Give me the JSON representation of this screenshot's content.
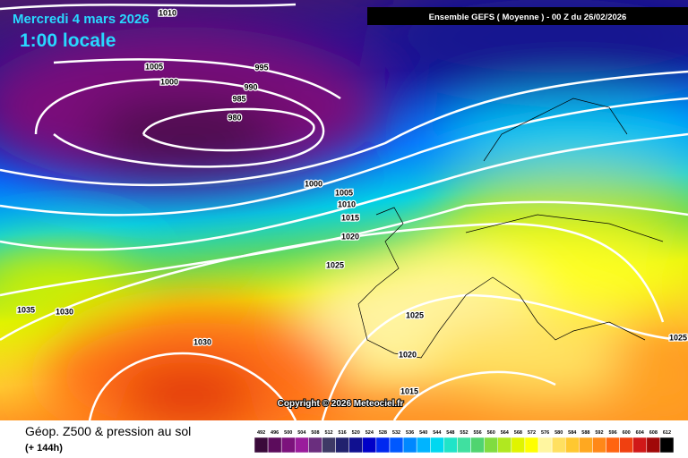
{
  "header": {
    "date": "Mercredi 4 mars 2026",
    "time": "1:00 locale",
    "model": "Ensemble GEFS  ( Moyenne )  -  00 Z du 26/02/2026"
  },
  "isobar_labels": [
    "1010",
    "1005",
    "1000",
    "995",
    "990",
    "985",
    "980",
    "1000",
    "1005",
    "1010",
    "1015",
    "1020",
    "1025",
    "1035",
    "1030",
    "1030",
    "1025",
    "1020",
    "1015",
    "1025"
  ],
  "copyright": "Copyright © 2026 Meteociel.fr",
  "footer": {
    "title": "Géop. Z500 & pression au sol",
    "lead": "(+ 144h)"
  },
  "legend": {
    "labels": [
      "492",
      "496",
      "500",
      "504",
      "508",
      "512",
      "516",
      "520",
      "524",
      "528",
      "532",
      "536",
      "540",
      "544",
      "548",
      "552",
      "556",
      "560",
      "564",
      "568",
      "572",
      "576",
      "580",
      "584",
      "588",
      "592",
      "596",
      "600",
      "604",
      "608",
      "612"
    ],
    "colors": [
      "#3a0a3a",
      "#5c0c5c",
      "#7c127c",
      "#9a1c9c",
      "#6a2e7e",
      "#3e3a66",
      "#22226e",
      "#101090",
      "#0000c8",
      "#0028f0",
      "#0058ff",
      "#0088ff",
      "#00b4ff",
      "#00d8f0",
      "#20e4c8",
      "#40e0a0",
      "#50d470",
      "#80dc40",
      "#b0e820",
      "#e0f400",
      "#ffff00",
      "#fff6a0",
      "#ffe060",
      "#ffc830",
      "#ffa820",
      "#ff8818",
      "#ff6410",
      "#f04010",
      "#d01818",
      "#a00808",
      "#000000"
    ]
  }
}
